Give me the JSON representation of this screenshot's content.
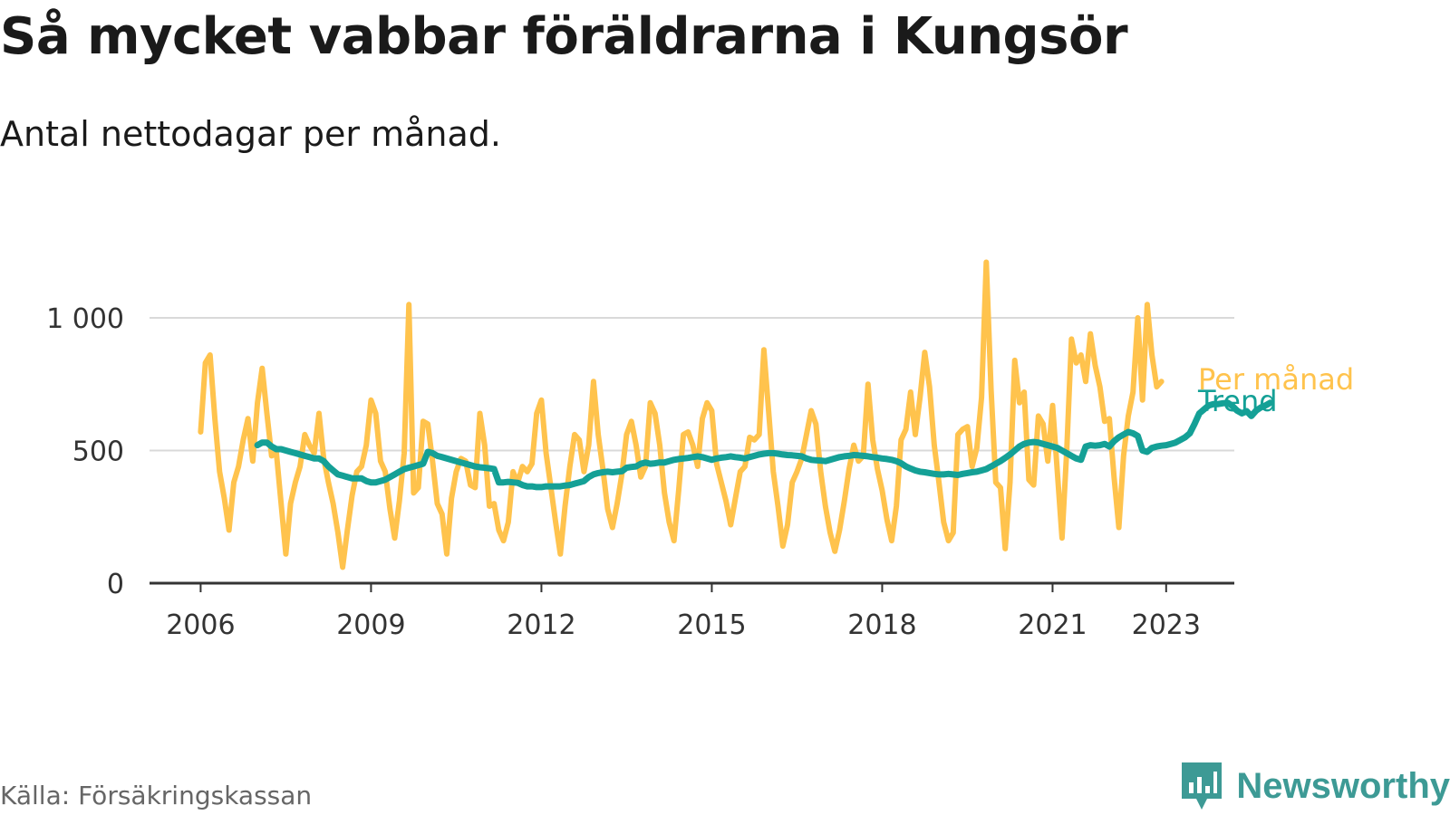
{
  "title": "Så mycket vabbar föräldrarna i Kungsör",
  "subtitle": "Antal nettodagar per månad.",
  "source": "Källa: Försäkringskassan",
  "brand": "Newsworthy",
  "colors": {
    "monthly": "#ffc34d",
    "trend": "#14a096",
    "grid": "#d9d9d9",
    "axis": "#333333",
    "brand": "#3d9a95"
  },
  "icons": {
    "brand_logo": "bar-chart-speech-bubble-icon"
  },
  "chart_data": {
    "type": "line",
    "x_start": "2006-01",
    "x_end": "2023-05",
    "xlim": [
      2005.1,
      2024.2
    ],
    "ylim": [
      0,
      1000
    ],
    "x_ticks": [
      {
        "value": 2006,
        "label": "2006"
      },
      {
        "value": 2009,
        "label": "2009"
      },
      {
        "value": 2012,
        "label": "2012"
      },
      {
        "value": 2015,
        "label": "2015"
      },
      {
        "value": 2018,
        "label": "2018"
      },
      {
        "value": 2021,
        "label": "2021"
      },
      {
        "value": 2023,
        "label": "2023"
      }
    ],
    "y_ticks": [
      {
        "value": 0,
        "label": "0"
      },
      {
        "value": 500,
        "label": "500"
      },
      {
        "value": 1000,
        "label": "1 000"
      }
    ],
    "grid": true,
    "series": [
      {
        "name": "Per månad",
        "key": "monthly",
        "start": "2006-01",
        "values": [
          570,
          830,
          860,
          620,
          420,
          320,
          200,
          380,
          440,
          540,
          620,
          460,
          680,
          810,
          640,
          480,
          490,
          300,
          110,
          300,
          380,
          440,
          560,
          520,
          490,
          640,
          470,
          380,
          300,
          190,
          60,
          200,
          330,
          420,
          440,
          520,
          690,
          640,
          460,
          420,
          280,
          170,
          310,
          490,
          1050,
          340,
          360,
          610,
          600,
          460,
          300,
          260,
          110,
          320,
          420,
          470,
          460,
          370,
          360,
          640,
          520,
          290,
          300,
          200,
          160,
          230,
          420,
          380,
          440,
          420,
          450,
          640,
          690,
          490,
          360,
          230,
          110,
          290,
          440,
          560,
          540,
          420,
          520,
          760,
          560,
          430,
          280,
          210,
          300,
          410,
          560,
          610,
          520,
          400,
          440,
          680,
          640,
          520,
          340,
          230,
          160,
          350,
          560,
          570,
          520,
          440,
          620,
          680,
          650,
          450,
          380,
          310,
          220,
          320,
          420,
          440,
          550,
          540,
          560,
          880,
          650,
          420,
          290,
          140,
          220,
          380,
          420,
          470,
          560,
          650,
          600,
          420,
          290,
          190,
          120,
          200,
          310,
          430,
          520,
          460,
          480,
          750,
          540,
          430,
          350,
          240,
          160,
          290,
          540,
          580,
          720,
          560,
          700,
          870,
          740,
          520,
          380,
          230,
          160,
          190,
          560,
          580,
          590,
          440,
          510,
          700,
          1210,
          730,
          380,
          360,
          130,
          380,
          840,
          680,
          720,
          390,
          370,
          630,
          600,
          460,
          670,
          420,
          170,
          500,
          920,
          830,
          860,
          760,
          940,
          820,
          740,
          610,
          620,
          400,
          210,
          480,
          630,
          720,
          1000,
          690,
          1050,
          860,
          740,
          760
        ]
      },
      {
        "name": "Trend",
        "key": "trend",
        "start": "2007-01",
        "values": [
          520,
          530,
          530,
          515,
          505,
          505,
          500,
          495,
          490,
          485,
          480,
          475,
          470,
          470,
          460,
          440,
          425,
          410,
          405,
          400,
          395,
          395,
          395,
          385,
          380,
          380,
          385,
          390,
          400,
          410,
          420,
          430,
          435,
          440,
          445,
          450,
          495,
          490,
          480,
          475,
          470,
          465,
          460,
          455,
          450,
          445,
          440,
          437,
          435,
          433,
          430,
          380,
          380,
          382,
          380,
          378,
          370,
          365,
          365,
          362,
          362,
          365,
          365,
          365,
          365,
          368,
          370,
          375,
          380,
          385,
          400,
          410,
          415,
          418,
          420,
          418,
          420,
          422,
          435,
          438,
          440,
          450,
          455,
          450,
          452,
          455,
          455,
          460,
          465,
          468,
          470,
          472,
          475,
          478,
          475,
          470,
          465,
          470,
          473,
          475,
          478,
          475,
          473,
          470,
          475,
          480,
          485,
          488,
          490,
          490,
          488,
          485,
          483,
          482,
          480,
          478,
          470,
          465,
          463,
          462,
          460,
          465,
          470,
          475,
          478,
          480,
          483,
          482,
          480,
          478,
          475,
          473,
          470,
          468,
          465,
          460,
          452,
          440,
          432,
          425,
          420,
          418,
          415,
          412,
          410,
          410,
          412,
          410,
          408,
          412,
          415,
          418,
          420,
          425,
          430,
          440,
          450,
          460,
          472,
          485,
          500,
          515,
          525,
          530,
          532,
          530,
          525,
          520,
          515,
          510,
          500,
          490,
          480,
          470,
          465,
          515,
          520,
          518,
          520,
          525,
          515,
          535,
          550,
          560,
          570,
          565,
          555,
          500,
          495,
          510,
          515,
          518,
          520,
          525,
          530,
          540,
          550,
          565,
          600,
          640,
          655,
          670,
          675,
          675,
          678,
          680,
          668,
          650,
          640,
          648,
          630,
          650,
          662,
          670,
          680
        ]
      }
    ]
  }
}
